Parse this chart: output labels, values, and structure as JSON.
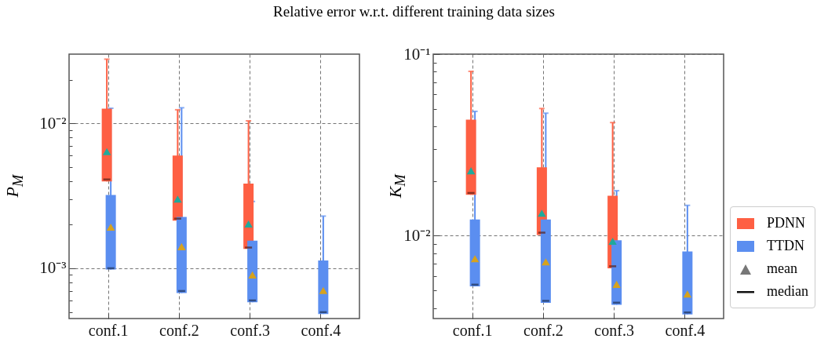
{
  "chart_data": [
    {
      "type": "box",
      "title": "Relative error w.r.t. different training data sizes",
      "ylabel": "P$_{M}$",
      "categories": [
        "conf.1",
        "conf.2",
        "conf.3",
        "conf.4"
      ],
      "log": true,
      "grid": true,
      "legend": "right",
      "annotations": [
        "mean",
        "median"
      ],
      "ylim": [
        0.00045,
        0.03
      ],
      "yticks": [
        {
          "value": 0.0005,
          "label": null
        },
        {
          "value": 0.0006,
          "label": null
        },
        {
          "value": 0.0007,
          "label": null
        },
        {
          "value": 0.0008,
          "label": null
        },
        {
          "value": 0.0009,
          "label": null
        },
        {
          "value": 0.001,
          "label": "10⁻³"
        },
        {
          "value": 0.002,
          "label": null
        },
        {
          "value": 0.003,
          "label": null
        },
        {
          "value": 0.004,
          "label": null
        },
        {
          "value": 0.005,
          "label": null
        },
        {
          "value": 0.006,
          "label": null
        },
        {
          "value": 0.007,
          "label": null
        },
        {
          "value": 0.008,
          "label": null
        },
        {
          "value": 0.009,
          "label": null
        },
        {
          "value": 0.01,
          "label": "10⁻²"
        },
        {
          "value": 0.02,
          "label": null
        }
      ],
      "series": [
        {
          "name": "PDNN",
          "color": "#fe5f43",
          "boxes": [
            {
              "low": 0.00397,
              "q1": 0.00397,
              "median": 0.0041,
              "q3": 0.0126,
              "high": 0.0277
            },
            {
              "low": 0.00213,
              "q1": 0.00213,
              "median": 0.0022,
              "q3": 0.006,
              "high": 0.0124
            },
            {
              "low": 0.00136,
              "q1": 0.00136,
              "median": 0.00139,
              "q3": 0.00384,
              "high": 0.0104
            },
            null
          ]
        },
        {
          "name": "TTDN",
          "color": "#5b8ef0",
          "boxes": [
            {
              "low": 0.00098,
              "q1": 0.00098,
              "median": 0.001,
              "q3": 0.0032,
              "high": 0.0127
            },
            {
              "low": 0.000675,
              "q1": 0.000675,
              "median": 0.000697,
              "q3": 0.00226,
              "high": 0.0128
            },
            {
              "low": 0.000583,
              "q1": 0.000583,
              "median": 0.0006,
              "q3": 0.00155,
              "high": 0.00289
            },
            {
              "low": 0.000484,
              "q1": 0.000484,
              "median": 0.000498,
              "q3": 0.00113,
              "high": 0.00229
            }
          ]
        },
        {
          "type": "scatter",
          "color": "#20a99b",
          "marker": "triangle",
          "x": [
            "conf.1",
            "conf.2",
            "conf.3",
            "conf.4"
          ],
          "values": [
            0.00638,
            0.003,
            0.00202,
            null
          ]
        },
        {
          "type": "scatter",
          "color": "#d6a21e",
          "marker": "triangle",
          "x": [
            "conf.1",
            "conf.2",
            "conf.3",
            "conf.4"
          ],
          "values": [
            0.00192,
            0.00141,
            0.0009,
            0.000703
          ]
        }
      ]
    },
    {
      "type": "box",
      "ylabel": "K$_{M}$",
      "categories": [
        "conf.1",
        "conf.2",
        "conf.3",
        "conf.4"
      ],
      "log": true,
      "grid": true,
      "legend": "right",
      "ylim": [
        0.0035,
        0.1
      ],
      "yticks": [
        {
          "value": 0.004,
          "label": null
        },
        {
          "value": 0.005,
          "label": null
        },
        {
          "value": 0.006,
          "label": null
        },
        {
          "value": 0.007,
          "label": null
        },
        {
          "value": 0.008,
          "label": null
        },
        {
          "value": 0.009,
          "label": null
        },
        {
          "value": 0.01,
          "label": "10⁻²"
        },
        {
          "value": 0.02,
          "label": null
        },
        {
          "value": 0.03,
          "label": null
        },
        {
          "value": 0.04,
          "label": null
        },
        {
          "value": 0.05,
          "label": null
        },
        {
          "value": 0.06,
          "label": null
        },
        {
          "value": 0.07,
          "label": null
        },
        {
          "value": 0.08,
          "label": null
        },
        {
          "value": 0.09,
          "label": null
        },
        {
          "value": 0.1,
          "label": "10⁻¹"
        }
      ],
      "series": [
        {
          "name": "PDNN",
          "color": "#fe5f43",
          "boxes": [
            {
              "low": 0.0168,
              "q1": 0.0168,
              "median": 0.0172,
              "q3": 0.0436,
              "high": 0.0804
            },
            {
              "low": 0.0101,
              "q1": 0.0101,
              "median": 0.0104,
              "q3": 0.0238,
              "high": 0.0502
            },
            {
              "low": 0.00661,
              "q1": 0.00661,
              "median": 0.00679,
              "q3": 0.0166,
              "high": 0.042
            },
            null
          ]
        },
        {
          "name": "TTDN",
          "color": "#5b8ef0",
          "boxes": [
            {
              "low": 0.00526,
              "q1": 0.00526,
              "median": 0.00538,
              "q3": 0.0123,
              "high": 0.0484
            },
            {
              "low": 0.00427,
              "q1": 0.00427,
              "median": 0.00438,
              "q3": 0.0123,
              "high": 0.0473
            },
            {
              "low": 0.00417,
              "q1": 0.00417,
              "median": 0.00428,
              "q3": 0.00945,
              "high": 0.0177
            },
            {
              "low": 0.00369,
              "q1": 0.00369,
              "median": 0.00378,
              "q3": 0.0082,
              "high": 0.0147
            }
          ]
        },
        {
          "type": "scatter",
          "color": "#20a99b",
          "marker": "triangle",
          "x": [
            "conf.1",
            "conf.2",
            "conf.3",
            "conf.4"
          ],
          "values": [
            0.0228,
            0.0133,
            0.00933,
            null
          ]
        },
        {
          "type": "scatter",
          "color": "#d6a21e",
          "marker": "triangle",
          "x": [
            "conf.1",
            "conf.2",
            "conf.3",
            "conf.4"
          ],
          "values": [
            0.00747,
            0.00718,
            0.0054,
            0.00478
          ]
        }
      ]
    }
  ]
}
